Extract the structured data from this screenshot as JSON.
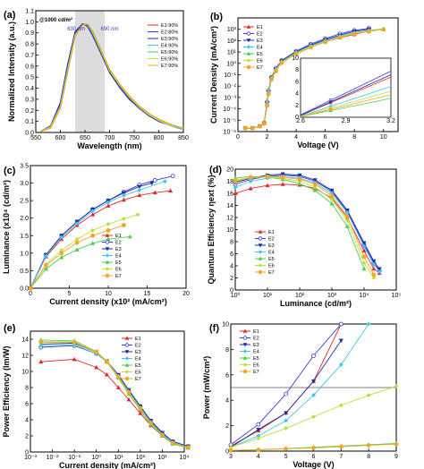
{
  "legend": [
    "E1",
    "E2",
    "E3",
    "E4",
    "E5",
    "E6",
    "E7"
  ],
  "colors": [
    "#e8262a",
    "#3a3ad8",
    "#1b2ea8",
    "#3ec8e8",
    "#4ad04a",
    "#b8e040",
    "#f5a623"
  ],
  "chart_data": [
    {
      "panel": "(a)",
      "type": "line",
      "xlabel": "Wavelength (nm)",
      "ylabel": "Normalized Intensity (a.u.)",
      "xlim": [
        550,
        850
      ],
      "ylim": [
        0.0,
        1.1
      ],
      "xticks": [
        550,
        600,
        650,
        700,
        750,
        800,
        850
      ],
      "yticks": [
        0.0,
        0.1,
        0.2,
        0.3,
        0.4,
        0.5,
        0.6,
        0.7,
        0.8,
        0.9,
        1.0,
        1.1
      ],
      "annotations": [
        "@1000 cd/m²",
        "630 nm",
        "690 nm"
      ],
      "shaded_band": [
        630,
        690
      ],
      "legend_labels": [
        "E1:90%",
        "E2:80%",
        "E3:90%",
        "E4:90%",
        "E5:90%",
        "E6:90%",
        "E7:90%"
      ],
      "x": [
        560,
        580,
        600,
        615,
        630,
        645,
        655,
        665,
        680,
        700,
        720,
        740,
        760,
        780,
        800,
        820,
        840,
        850
      ],
      "series": [
        {
          "name": "E1:90%",
          "values": [
            0.01,
            0.05,
            0.25,
            0.6,
            0.9,
            0.98,
            0.97,
            0.9,
            0.75,
            0.55,
            0.42,
            0.31,
            0.23,
            0.16,
            0.11,
            0.07,
            0.04,
            0.03
          ]
        },
        {
          "name": "E2:80%",
          "values": [
            0.01,
            0.06,
            0.27,
            0.62,
            0.91,
            0.98,
            0.96,
            0.88,
            0.74,
            0.54,
            0.41,
            0.3,
            0.22,
            0.15,
            0.1,
            0.07,
            0.04,
            0.03
          ]
        },
        {
          "name": "E3:90%",
          "values": [
            0.01,
            0.05,
            0.26,
            0.61,
            0.9,
            0.98,
            0.97,
            0.89,
            0.74,
            0.55,
            0.42,
            0.31,
            0.22,
            0.16,
            0.11,
            0.07,
            0.04,
            0.03
          ]
        },
        {
          "name": "E4:90%",
          "values": [
            0.01,
            0.05,
            0.24,
            0.58,
            0.88,
            0.97,
            0.98,
            0.9,
            0.76,
            0.56,
            0.43,
            0.32,
            0.23,
            0.16,
            0.11,
            0.07,
            0.04,
            0.03
          ]
        },
        {
          "name": "E5:90%",
          "values": [
            0.01,
            0.04,
            0.22,
            0.55,
            0.87,
            0.97,
            0.98,
            0.92,
            0.77,
            0.57,
            0.44,
            0.33,
            0.24,
            0.17,
            0.12,
            0.08,
            0.05,
            0.04
          ]
        },
        {
          "name": "E6:90%",
          "values": [
            0.01,
            0.05,
            0.23,
            0.57,
            0.88,
            0.97,
            0.98,
            0.91,
            0.76,
            0.56,
            0.43,
            0.32,
            0.23,
            0.16,
            0.11,
            0.07,
            0.05,
            0.04
          ]
        },
        {
          "name": "E7:90%",
          "values": [
            0.01,
            0.04,
            0.22,
            0.56,
            0.87,
            0.97,
            0.98,
            0.91,
            0.77,
            0.57,
            0.44,
            0.33,
            0.24,
            0.17,
            0.12,
            0.08,
            0.05,
            0.04
          ]
        }
      ]
    },
    {
      "panel": "(b)",
      "type": "line",
      "xlabel": "Voltage (V)",
      "ylabel": "Current Density (mA/cm²)",
      "xlim": [
        0,
        11
      ],
      "ylim": [
        1e-06,
        10000.0
      ],
      "yscale": "log",
      "xticks": [
        0,
        2,
        4,
        6,
        8,
        10
      ],
      "yticks": [
        1e-06,
        1e-05,
        0.0001,
        0.001,
        0.01,
        0.1,
        1.0,
        10.0,
        100.0,
        1000.0
      ],
      "ytick_labels": [
        "10⁻⁶",
        "10⁻⁵",
        "10⁻⁴",
        "10⁻³",
        "10⁻²",
        "10⁻¹",
        "10⁰",
        "10¹",
        "10²",
        "10³"
      ],
      "x": [
        0.5,
        1,
        1.5,
        1.8,
        2.0,
        2.1,
        2.3,
        2.6,
        3,
        4,
        5,
        6,
        7,
        8,
        9,
        10
      ],
      "series": [
        {
          "name": "E1",
          "values": [
            2e-06,
            2e-06,
            3e-06,
            5e-06,
            0.0003,
            0.003,
            0.05,
            0.3,
            1.5,
            8,
            30,
            80,
            180,
            350,
            700,
            1000
          ]
        },
        {
          "name": "E2",
          "values": [
            2e-06,
            2e-06,
            3e-06,
            6e-06,
            0.0004,
            0.004,
            0.06,
            0.35,
            1.8,
            12,
            50,
            150,
            400,
            800,
            1200,
            null
          ]
        },
        {
          "name": "E3",
          "values": [
            2e-06,
            2e-06,
            3e-06,
            5e-06,
            0.0003,
            0.003,
            0.05,
            0.3,
            1.6,
            10,
            40,
            120,
            300,
            650,
            1000,
            null
          ]
        },
        {
          "name": "E4",
          "values": [
            2e-06,
            2e-06,
            3e-06,
            5e-06,
            0.0003,
            0.003,
            0.05,
            0.28,
            1.4,
            9,
            35,
            100,
            250,
            500,
            800,
            1100
          ]
        },
        {
          "name": "E5",
          "values": [
            2e-06,
            2e-06,
            3e-06,
            5e-06,
            0.0002,
            0.002,
            0.04,
            0.22,
            1.2,
            7,
            28,
            80,
            200,
            420,
            700,
            1000
          ]
        },
        {
          "name": "E6",
          "values": [
            2e-06,
            2e-06,
            3e-06,
            5e-06,
            0.0002,
            0.002,
            0.04,
            0.25,
            1.3,
            8,
            30,
            85,
            210,
            440,
            720,
            1050
          ]
        },
        {
          "name": "E7",
          "values": [
            2e-06,
            2e-06,
            3e-06,
            5e-06,
            0.0002,
            0.002,
            0.04,
            0.2,
            1.1,
            6.5,
            26,
            75,
            190,
            400,
            650,
            950
          ]
        }
      ],
      "inset": {
        "xlim": [
          2.6,
          3.2
        ],
        "ylim": [
          0,
          10
        ],
        "xticks": [
          2.6,
          2.9,
          3.2
        ],
        "yticks": [
          0,
          2,
          4,
          6,
          8,
          10
        ],
        "x": [
          2.6,
          3.2
        ],
        "series": [
          {
            "name": "E1",
            "values": [
              0.3,
              6.8
            ]
          },
          {
            "name": "E2",
            "values": [
              0.4,
              7.8
            ]
          },
          {
            "name": "E3",
            "values": [
              0.3,
              7.2
            ]
          },
          {
            "name": "E4",
            "values": [
              0.2,
              5.2
            ]
          },
          {
            "name": "E5",
            "values": [
              0.1,
              3.2
            ]
          },
          {
            "name": "E6",
            "values": [
              0.15,
              4.4
            ]
          },
          {
            "name": "E7",
            "values": [
              0.1,
              3.8
            ]
          }
        ]
      }
    },
    {
      "panel": "(c)",
      "type": "scatter",
      "xlabel": "Current density (x10² (mA/cm²)",
      "ylabel": "Luminance (x10⁴ (cd/m²)",
      "xlim": [
        0,
        20
      ],
      "ylim": [
        0,
        3.5
      ],
      "xticks": [
        0,
        5,
        10,
        15,
        20
      ],
      "yticks": [
        0.0,
        0.5,
        1.0,
        1.5,
        2.0,
        2.5,
        3.0,
        3.5
      ],
      "series": [
        {
          "name": "E1",
          "x": [
            0,
            2,
            4,
            6,
            8,
            10,
            12,
            14,
            16,
            18
          ],
          "values": [
            0,
            0.9,
            1.4,
            1.8,
            2.1,
            2.35,
            2.52,
            2.65,
            2.73,
            2.78
          ]
        },
        {
          "name": "E2",
          "x": [
            0,
            2,
            4,
            6,
            8,
            10,
            12,
            14,
            16,
            18.3
          ],
          "values": [
            0,
            0.95,
            1.5,
            1.9,
            2.25,
            2.5,
            2.75,
            2.95,
            3.08,
            3.2
          ]
        },
        {
          "name": "E3",
          "x": [
            0,
            2,
            4,
            6,
            8,
            10,
            12,
            14,
            15.6
          ],
          "values": [
            0,
            0.95,
            1.5,
            1.9,
            2.25,
            2.5,
            2.72,
            2.9,
            3.0
          ]
        },
        {
          "name": "E4",
          "x": [
            0,
            2,
            4,
            6,
            8,
            10,
            12,
            14,
            17.3
          ],
          "values": [
            0,
            0.92,
            1.45,
            1.85,
            2.2,
            2.45,
            2.65,
            2.8,
            3.05
          ]
        },
        {
          "name": "E5",
          "x": [
            0,
            2,
            4,
            6,
            8,
            10,
            12.8
          ],
          "values": [
            0,
            0.55,
            0.88,
            1.1,
            1.28,
            1.4,
            1.47
          ]
        },
        {
          "name": "E6",
          "x": [
            0,
            2,
            4,
            6,
            8,
            10,
            12,
            13.8
          ],
          "values": [
            0,
            0.68,
            1.08,
            1.4,
            1.65,
            1.83,
            1.98,
            2.1
          ]
        },
        {
          "name": "E7",
          "x": [
            0,
            2,
            4,
            6,
            8,
            10,
            12
          ],
          "values": [
            0,
            0.65,
            1.0,
            1.3,
            1.5,
            1.65,
            1.8
          ]
        }
      ]
    },
    {
      "panel": "(d)",
      "type": "line",
      "xlabel": "Luminance (cd/m²)",
      "ylabel": "Quantum Efficiency ηext (%)",
      "xscale": "log",
      "xlim": [
        1,
        100000.0
      ],
      "ylim": [
        0,
        20
      ],
      "xticks": [
        1,
        10,
        100,
        1000,
        10000,
        100000
      ],
      "xtick_labels": [
        "10⁰",
        "10¹",
        "10²",
        "10³",
        "10⁴",
        "10⁵"
      ],
      "yticks": [
        0,
        2,
        4,
        6,
        8,
        10,
        12,
        14,
        16,
        18,
        20
      ],
      "x": [
        1,
        3,
        10,
        30,
        100,
        300,
        1000,
        3000,
        10000,
        20000,
        30000
      ],
      "series": [
        {
          "name": "E1",
          "values": [
            16.0,
            16.8,
            17.3,
            17.5,
            17.4,
            16.8,
            15.2,
            12.0,
            6.5,
            3.5,
            2.8
          ]
        },
        {
          "name": "E2",
          "values": [
            17.5,
            18.3,
            18.8,
            19.0,
            18.8,
            18.0,
            16.3,
            13.0,
            7.5,
            4.5,
            3.2
          ]
        },
        {
          "name": "E3",
          "values": [
            17.8,
            18.5,
            19.0,
            19.2,
            19.0,
            18.2,
            16.5,
            13.2,
            7.8,
            4.8,
            3.5
          ]
        },
        {
          "name": "E4",
          "values": [
            17.0,
            18.0,
            18.5,
            18.7,
            18.5,
            17.7,
            16.0,
            12.8,
            7.2,
            4.2,
            3.0
          ]
        },
        {
          "name": "E5",
          "values": [
            18.5,
            18.8,
            18.7,
            18.3,
            17.6,
            16.5,
            14.3,
            10.5,
            3.5,
            null,
            null
          ]
        },
        {
          "name": "E6",
          "values": [
            18.2,
            18.6,
            18.7,
            18.5,
            18.0,
            17.0,
            15.0,
            11.5,
            4.5,
            2.0,
            null
          ]
        },
        {
          "name": "E7",
          "values": [
            18.0,
            18.6,
            18.8,
            18.7,
            18.3,
            17.5,
            15.6,
            12.2,
            5.5,
            2.5,
            null
          ]
        }
      ]
    },
    {
      "panel": "(e)",
      "type": "line",
      "xlabel": "Current density (mA/cm²)",
      "ylabel": "Power Efficiency (lm/W)",
      "xscale": "log",
      "xlim": [
        0.001,
        10000
      ],
      "ylim": [
        0,
        15
      ],
      "xticks": [
        0.001,
        0.01,
        0.1,
        1,
        10,
        100,
        1000,
        10000
      ],
      "xtick_labels": [
        "10⁻³",
        "10⁻²",
        "10⁻¹",
        "10⁰",
        "10¹",
        "10²",
        "10³",
        "10⁴"
      ],
      "yticks": [
        0,
        2,
        4,
        6,
        8,
        10,
        12,
        14
      ],
      "x": [
        0.003,
        0.1,
        1,
        3,
        10,
        30,
        100,
        300,
        1000,
        3000,
        15000
      ],
      "series": [
        {
          "name": "E1",
          "values": [
            11.2,
            11.5,
            10.5,
            9.6,
            8.0,
            6.5,
            4.8,
            3.3,
            2.0,
            1.1,
            0.6
          ]
        },
        {
          "name": "E2",
          "values": [
            13.0,
            13.2,
            12.2,
            11.2,
            9.5,
            7.6,
            5.6,
            3.8,
            2.3,
            1.3,
            0.7
          ]
        },
        {
          "name": "E3",
          "values": [
            13.4,
            13.5,
            12.4,
            11.3,
            9.6,
            7.7,
            5.7,
            3.9,
            2.4,
            1.3,
            0.7
          ]
        },
        {
          "name": "E4",
          "values": [
            13.2,
            13.3,
            12.2,
            11.2,
            9.4,
            7.5,
            5.5,
            3.7,
            2.2,
            1.2,
            0.6
          ]
        },
        {
          "name": "E5",
          "values": [
            13.9,
            13.8,
            12.5,
            11.2,
            9.2,
            7.2,
            5.2,
            3.4,
            2.0,
            1.0,
            0.5
          ]
        },
        {
          "name": "E6",
          "values": [
            13.7,
            13.7,
            12.5,
            11.3,
            9.4,
            7.4,
            5.4,
            3.6,
            2.1,
            1.1,
            0.6
          ]
        },
        {
          "name": "E7",
          "values": [
            13.6,
            13.6,
            12.4,
            11.2,
            9.3,
            7.4,
            5.4,
            3.6,
            2.1,
            1.1,
            0.6
          ]
        }
      ]
    },
    {
      "panel": "(f)",
      "type": "line",
      "xlabel": "Voltage (V)",
      "ylabel": "Power (mW/cm²)",
      "xlim": [
        3,
        9
      ],
      "ylim": [
        0,
        10
      ],
      "xticks": [
        3,
        4,
        5,
        6,
        7,
        8,
        9
      ],
      "yticks": [
        0,
        2,
        4,
        6,
        8,
        10
      ],
      "reference_line": 5,
      "x": [
        3,
        4,
        5,
        6,
        7,
        8,
        9
      ],
      "series": [
        {
          "name": "E1",
          "values": [
            0.4,
            1.6,
            3.0,
            5.5,
            10.0,
            null,
            null
          ]
        },
        {
          "name": "E2",
          "values": [
            0.5,
            2.1,
            4.5,
            7.5,
            11.0,
            null,
            null
          ]
        },
        {
          "name": "E3",
          "values": [
            0.3,
            1.7,
            3.0,
            5.5,
            8.7,
            null,
            null
          ]
        },
        {
          "name": "E4",
          "values": [
            0.3,
            1.2,
            2.4,
            4.4,
            6.8,
            10.0,
            null
          ]
        },
        {
          "name": "E5",
          "values": [
            0.05,
            0.12,
            0.2,
            0.3,
            0.4,
            0.5,
            0.6
          ]
        },
        {
          "name": "E6",
          "values": [
            0.3,
            1.0,
            1.8,
            2.7,
            3.6,
            4.4,
            5.1
          ]
        },
        {
          "name": "E7",
          "values": [
            0.05,
            0.1,
            0.18,
            0.25,
            0.35,
            0.45,
            0.55
          ]
        }
      ]
    }
  ]
}
